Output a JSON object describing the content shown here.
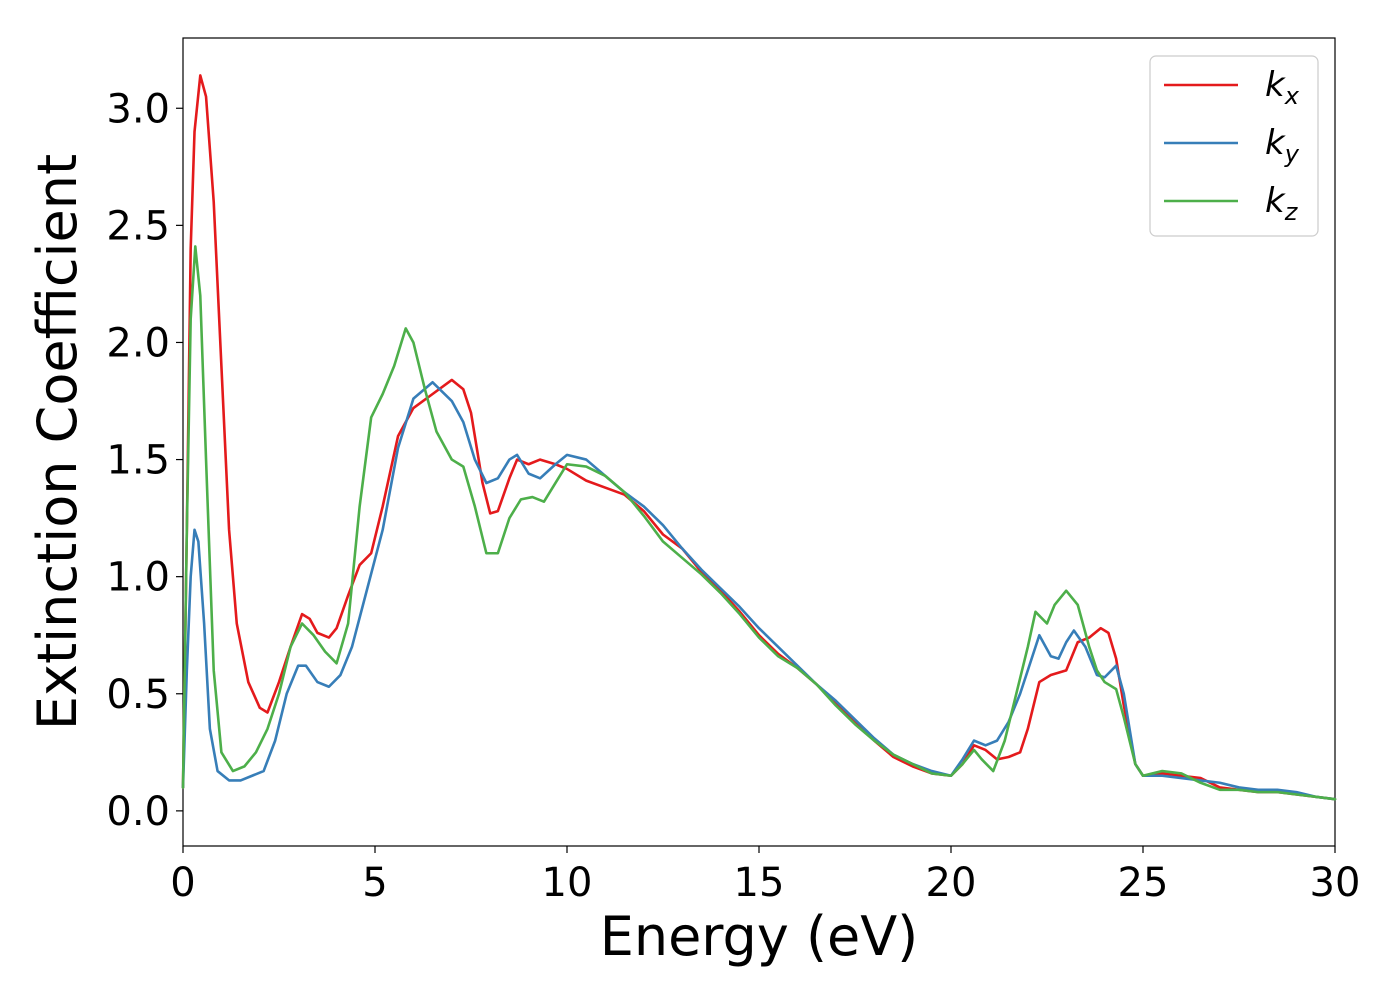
{
  "chart_data": {
    "type": "line",
    "xlabel": "Energy (eV)",
    "ylabel": "Extinction Coefficient",
    "xlim": [
      0,
      30
    ],
    "ylim": [
      -0.15,
      3.3
    ],
    "x_ticks": [
      0,
      5,
      10,
      15,
      20,
      25,
      30
    ],
    "x_tick_labels": [
      "0",
      "5",
      "10",
      "15",
      "20",
      "25",
      "30"
    ],
    "y_ticks": [
      0.0,
      0.5,
      1.0,
      1.5,
      2.0,
      2.5,
      3.0
    ],
    "y_tick_labels": [
      "0.0",
      "0.5",
      "1.0",
      "1.5",
      "2.0",
      "2.5",
      "3.0"
    ],
    "grid": false,
    "legend_position": "top-right",
    "series": [
      {
        "name": "k_x",
        "legend_main": "k",
        "legend_sub": "x",
        "color": "#e41a1c",
        "points": [
          [
            0,
            0.1
          ],
          [
            0.1,
            1.2
          ],
          [
            0.2,
            2.4
          ],
          [
            0.3,
            2.9
          ],
          [
            0.45,
            3.14
          ],
          [
            0.6,
            3.05
          ],
          [
            0.8,
            2.6
          ],
          [
            1.0,
            1.9
          ],
          [
            1.2,
            1.2
          ],
          [
            1.4,
            0.8
          ],
          [
            1.7,
            0.55
          ],
          [
            2.0,
            0.44
          ],
          [
            2.2,
            0.42
          ],
          [
            2.5,
            0.55
          ],
          [
            2.8,
            0.7
          ],
          [
            3.1,
            0.84
          ],
          [
            3.3,
            0.82
          ],
          [
            3.5,
            0.76
          ],
          [
            3.8,
            0.74
          ],
          [
            4.0,
            0.78
          ],
          [
            4.3,
            0.92
          ],
          [
            4.6,
            1.05
          ],
          [
            4.9,
            1.1
          ],
          [
            5.2,
            1.3
          ],
          [
            5.6,
            1.6
          ],
          [
            6.0,
            1.72
          ],
          [
            6.5,
            1.78
          ],
          [
            7.0,
            1.84
          ],
          [
            7.3,
            1.8
          ],
          [
            7.5,
            1.7
          ],
          [
            7.8,
            1.4
          ],
          [
            8.0,
            1.27
          ],
          [
            8.2,
            1.28
          ],
          [
            8.5,
            1.42
          ],
          [
            8.7,
            1.5
          ],
          [
            9.0,
            1.48
          ],
          [
            9.3,
            1.5
          ],
          [
            9.7,
            1.48
          ],
          [
            10.0,
            1.46
          ],
          [
            10.5,
            1.41
          ],
          [
            11.0,
            1.38
          ],
          [
            11.5,
            1.35
          ],
          [
            12.0,
            1.28
          ],
          [
            12.5,
            1.18
          ],
          [
            13.0,
            1.12
          ],
          [
            13.5,
            1.02
          ],
          [
            14.0,
            0.94
          ],
          [
            14.5,
            0.85
          ],
          [
            15.0,
            0.75
          ],
          [
            15.5,
            0.67
          ],
          [
            16.0,
            0.61
          ],
          [
            16.5,
            0.54
          ],
          [
            17.0,
            0.46
          ],
          [
            17.5,
            0.38
          ],
          [
            18.0,
            0.3
          ],
          [
            18.5,
            0.23
          ],
          [
            19.0,
            0.19
          ],
          [
            19.5,
            0.16
          ],
          [
            20.0,
            0.15
          ],
          [
            20.3,
            0.2
          ],
          [
            20.6,
            0.28
          ],
          [
            20.9,
            0.26
          ],
          [
            21.2,
            0.22
          ],
          [
            21.5,
            0.23
          ],
          [
            21.8,
            0.25
          ],
          [
            22.0,
            0.35
          ],
          [
            22.3,
            0.55
          ],
          [
            22.6,
            0.58
          ],
          [
            23.0,
            0.6
          ],
          [
            23.3,
            0.72
          ],
          [
            23.6,
            0.74
          ],
          [
            23.9,
            0.78
          ],
          [
            24.1,
            0.76
          ],
          [
            24.3,
            0.65
          ],
          [
            24.5,
            0.45
          ],
          [
            24.8,
            0.2
          ],
          [
            25.0,
            0.15
          ],
          [
            25.5,
            0.16
          ],
          [
            26.0,
            0.15
          ],
          [
            26.5,
            0.14
          ],
          [
            27.0,
            0.1
          ],
          [
            27.5,
            0.09
          ],
          [
            28.0,
            0.08
          ],
          [
            28.5,
            0.08
          ],
          [
            29.0,
            0.07
          ],
          [
            29.5,
            0.06
          ],
          [
            30.0,
            0.05
          ]
        ]
      },
      {
        "name": "k_y",
        "legend_main": "k",
        "legend_sub": "y",
        "color": "#377eb8",
        "points": [
          [
            0,
            0.1
          ],
          [
            0.1,
            0.6
          ],
          [
            0.2,
            1.0
          ],
          [
            0.3,
            1.2
          ],
          [
            0.4,
            1.15
          ],
          [
            0.55,
            0.8
          ],
          [
            0.7,
            0.35
          ],
          [
            0.9,
            0.17
          ],
          [
            1.2,
            0.13
          ],
          [
            1.5,
            0.13
          ],
          [
            1.8,
            0.15
          ],
          [
            2.1,
            0.17
          ],
          [
            2.4,
            0.3
          ],
          [
            2.7,
            0.5
          ],
          [
            3.0,
            0.62
          ],
          [
            3.2,
            0.62
          ],
          [
            3.5,
            0.55
          ],
          [
            3.8,
            0.53
          ],
          [
            4.1,
            0.58
          ],
          [
            4.4,
            0.7
          ],
          [
            4.8,
            0.95
          ],
          [
            5.2,
            1.2
          ],
          [
            5.6,
            1.55
          ],
          [
            6.0,
            1.76
          ],
          [
            6.5,
            1.83
          ],
          [
            7.0,
            1.75
          ],
          [
            7.3,
            1.66
          ],
          [
            7.6,
            1.5
          ],
          [
            7.9,
            1.4
          ],
          [
            8.2,
            1.42
          ],
          [
            8.5,
            1.5
          ],
          [
            8.7,
            1.52
          ],
          [
            9.0,
            1.44
          ],
          [
            9.3,
            1.42
          ],
          [
            9.7,
            1.48
          ],
          [
            10.0,
            1.52
          ],
          [
            10.5,
            1.5
          ],
          [
            11.0,
            1.43
          ],
          [
            11.5,
            1.36
          ],
          [
            12.0,
            1.3
          ],
          [
            12.5,
            1.22
          ],
          [
            13.0,
            1.12
          ],
          [
            13.5,
            1.03
          ],
          [
            14.0,
            0.95
          ],
          [
            14.5,
            0.87
          ],
          [
            15.0,
            0.78
          ],
          [
            15.5,
            0.7
          ],
          [
            16.0,
            0.62
          ],
          [
            16.5,
            0.54
          ],
          [
            17.0,
            0.47
          ],
          [
            17.5,
            0.39
          ],
          [
            18.0,
            0.31
          ],
          [
            18.5,
            0.24
          ],
          [
            19.0,
            0.2
          ],
          [
            19.5,
            0.17
          ],
          [
            20.0,
            0.15
          ],
          [
            20.3,
            0.22
          ],
          [
            20.6,
            0.3
          ],
          [
            20.9,
            0.28
          ],
          [
            21.2,
            0.3
          ],
          [
            21.5,
            0.38
          ],
          [
            21.8,
            0.5
          ],
          [
            22.0,
            0.6
          ],
          [
            22.3,
            0.75
          ],
          [
            22.6,
            0.66
          ],
          [
            22.8,
            0.65
          ],
          [
            23.0,
            0.72
          ],
          [
            23.2,
            0.77
          ],
          [
            23.5,
            0.7
          ],
          [
            23.8,
            0.58
          ],
          [
            24.0,
            0.57
          ],
          [
            24.3,
            0.62
          ],
          [
            24.5,
            0.5
          ],
          [
            24.8,
            0.2
          ],
          [
            25.0,
            0.15
          ],
          [
            25.5,
            0.15
          ],
          [
            26.0,
            0.14
          ],
          [
            26.5,
            0.13
          ],
          [
            27.0,
            0.12
          ],
          [
            27.5,
            0.1
          ],
          [
            28.0,
            0.09
          ],
          [
            28.5,
            0.09
          ],
          [
            29.0,
            0.08
          ],
          [
            29.5,
            0.06
          ],
          [
            30.0,
            0.05
          ]
        ]
      },
      {
        "name": "k_z",
        "legend_main": "k",
        "legend_sub": "z",
        "color": "#4daf4a",
        "points": [
          [
            0,
            0.1
          ],
          [
            0.1,
            1.2
          ],
          [
            0.2,
            2.1
          ],
          [
            0.32,
            2.41
          ],
          [
            0.45,
            2.2
          ],
          [
            0.6,
            1.5
          ],
          [
            0.8,
            0.6
          ],
          [
            1.0,
            0.25
          ],
          [
            1.3,
            0.17
          ],
          [
            1.6,
            0.19
          ],
          [
            1.9,
            0.25
          ],
          [
            2.2,
            0.35
          ],
          [
            2.5,
            0.5
          ],
          [
            2.8,
            0.7
          ],
          [
            3.1,
            0.8
          ],
          [
            3.4,
            0.75
          ],
          [
            3.7,
            0.68
          ],
          [
            4.0,
            0.63
          ],
          [
            4.3,
            0.8
          ],
          [
            4.6,
            1.3
          ],
          [
            4.9,
            1.68
          ],
          [
            5.2,
            1.78
          ],
          [
            5.5,
            1.9
          ],
          [
            5.8,
            2.06
          ],
          [
            6.0,
            2.0
          ],
          [
            6.3,
            1.8
          ],
          [
            6.6,
            1.62
          ],
          [
            7.0,
            1.5
          ],
          [
            7.3,
            1.47
          ],
          [
            7.6,
            1.3
          ],
          [
            7.9,
            1.1
          ],
          [
            8.2,
            1.1
          ],
          [
            8.5,
            1.25
          ],
          [
            8.8,
            1.33
          ],
          [
            9.1,
            1.34
          ],
          [
            9.4,
            1.32
          ],
          [
            9.7,
            1.4
          ],
          [
            10.0,
            1.48
          ],
          [
            10.5,
            1.47
          ],
          [
            11.0,
            1.43
          ],
          [
            11.5,
            1.36
          ],
          [
            12.0,
            1.26
          ],
          [
            12.5,
            1.15
          ],
          [
            13.0,
            1.08
          ],
          [
            13.5,
            1.01
          ],
          [
            14.0,
            0.93
          ],
          [
            14.5,
            0.84
          ],
          [
            15.0,
            0.74
          ],
          [
            15.5,
            0.66
          ],
          [
            16.0,
            0.61
          ],
          [
            16.5,
            0.54
          ],
          [
            17.0,
            0.45
          ],
          [
            17.5,
            0.37
          ],
          [
            18.0,
            0.3
          ],
          [
            18.5,
            0.24
          ],
          [
            19.0,
            0.2
          ],
          [
            19.5,
            0.16
          ],
          [
            20.0,
            0.15
          ],
          [
            20.3,
            0.2
          ],
          [
            20.6,
            0.26
          ],
          [
            20.8,
            0.22
          ],
          [
            21.1,
            0.17
          ],
          [
            21.4,
            0.3
          ],
          [
            21.7,
            0.5
          ],
          [
            22.0,
            0.7
          ],
          [
            22.2,
            0.85
          ],
          [
            22.5,
            0.8
          ],
          [
            22.7,
            0.88
          ],
          [
            23.0,
            0.94
          ],
          [
            23.3,
            0.88
          ],
          [
            23.6,
            0.7
          ],
          [
            23.8,
            0.6
          ],
          [
            24.0,
            0.55
          ],
          [
            24.3,
            0.52
          ],
          [
            24.5,
            0.4
          ],
          [
            24.8,
            0.2
          ],
          [
            25.0,
            0.15
          ],
          [
            25.5,
            0.17
          ],
          [
            26.0,
            0.16
          ],
          [
            26.5,
            0.12
          ],
          [
            27.0,
            0.09
          ],
          [
            27.5,
            0.09
          ],
          [
            28.0,
            0.08
          ],
          [
            28.5,
            0.08
          ],
          [
            29.0,
            0.07
          ],
          [
            29.5,
            0.06
          ],
          [
            30.0,
            0.05
          ]
        ]
      }
    ]
  }
}
